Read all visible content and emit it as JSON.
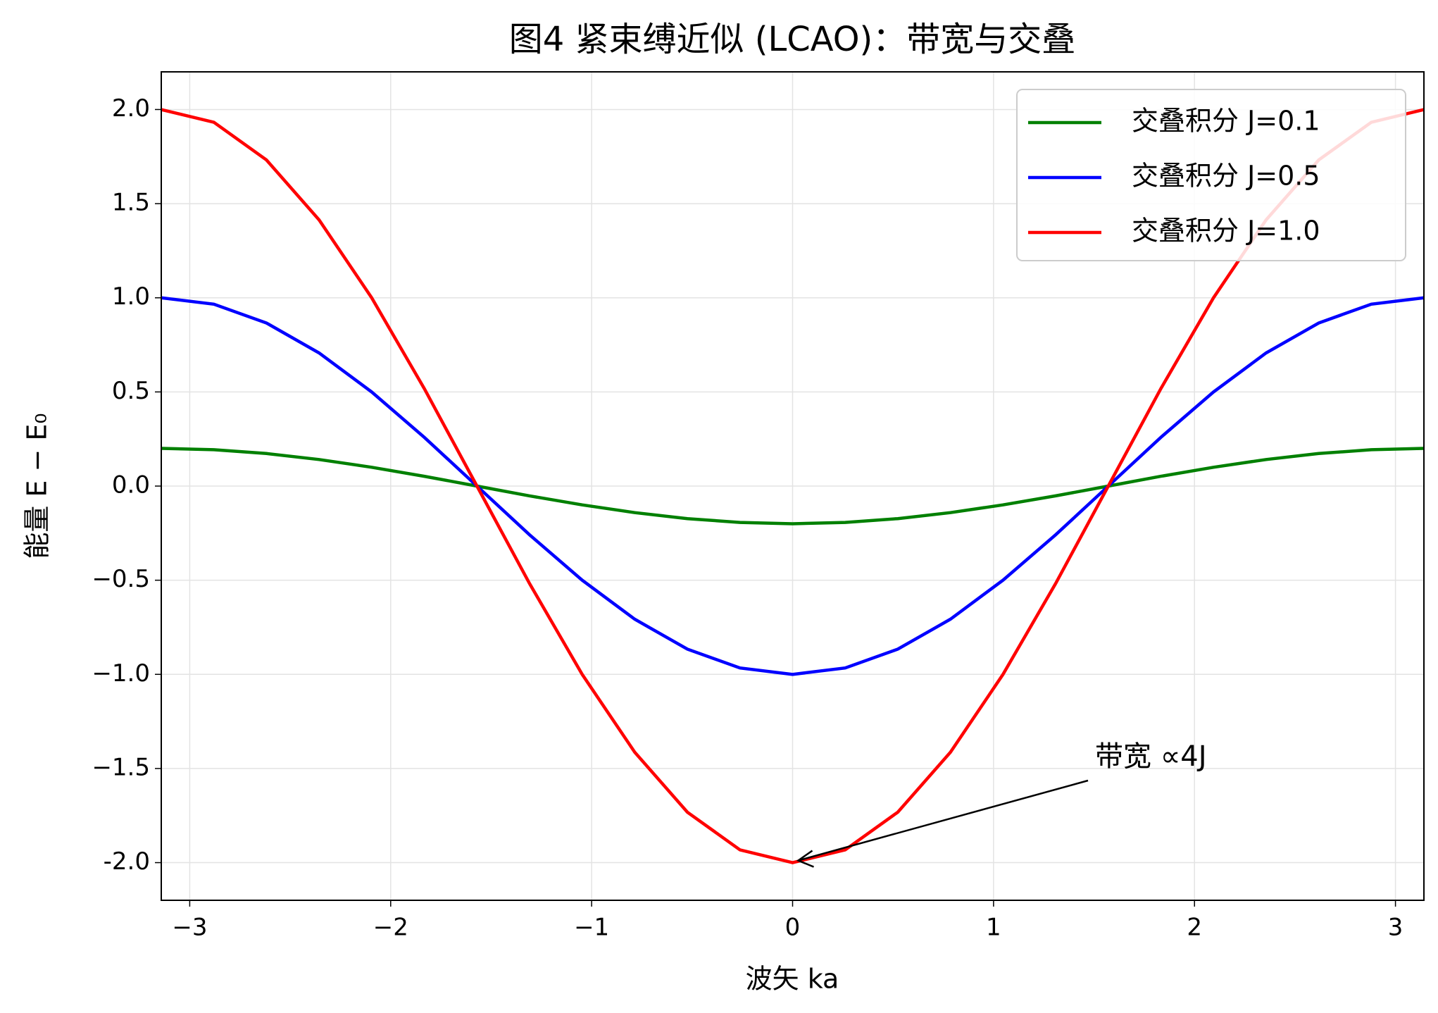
{
  "chart_data": {
    "type": "line",
    "title": "图4 紧束缚近似 (LCAO)：带宽与交叠",
    "x_label": "波矢 ka",
    "y_label": "能量 E − E₀",
    "annotation": "带宽 ∝4J",
    "x": [
      -3.1416,
      -2.8798,
      -2.618,
      -2.3562,
      -2.0944,
      -1.8326,
      -1.5708,
      -1.309,
      -1.0472,
      -0.7854,
      -0.5236,
      -0.2618,
      0,
      0.2618,
      0.5236,
      0.7854,
      1.0472,
      1.309,
      1.5708,
      1.8326,
      2.0944,
      2.3562,
      2.618,
      2.8798,
      3.1416
    ],
    "series": [
      {
        "name": "交叠积分 J=0.1",
        "color": "#008000",
        "values": [
          0.2,
          0.193,
          0.173,
          0.141,
          0.1,
          0.052,
          0,
          -0.052,
          -0.1,
          -0.141,
          -0.173,
          -0.193,
          -0.2,
          -0.193,
          -0.173,
          -0.141,
          -0.1,
          -0.052,
          0,
          0.052,
          0.1,
          0.141,
          0.173,
          0.193,
          0.2
        ]
      },
      {
        "name": "交叠积分 J=0.5",
        "color": "#0000ff",
        "values": [
          1,
          0.966,
          0.866,
          0.707,
          0.5,
          0.259,
          0,
          -0.259,
          -0.5,
          -0.707,
          -0.866,
          -0.966,
          -1,
          -0.966,
          -0.866,
          -0.707,
          -0.5,
          -0.259,
          0,
          0.259,
          0.5,
          0.707,
          0.866,
          0.966,
          1
        ]
      },
      {
        "name": "交叠积分 J=1.0",
        "color": "#ff0000",
        "values": [
          2,
          1.932,
          1.732,
          1.414,
          1,
          0.518,
          0,
          -0.518,
          -1,
          -1.414,
          -1.732,
          -1.932,
          -2,
          -1.932,
          -1.732,
          -1.414,
          -1,
          -0.518,
          0,
          0.518,
          1,
          1.414,
          1.732,
          1.932,
          2
        ]
      }
    ],
    "xlim": [
      -3.1416,
      3.1416
    ],
    "ylim": [
      -2.2,
      2.2
    ],
    "xticks": [
      {
        "value": -3,
        "label": "−3"
      },
      {
        "value": -2,
        "label": "−2"
      },
      {
        "value": -1,
        "label": "−1"
      },
      0,
      1,
      2,
      3
    ],
    "yticks": [
      {
        "value": -2,
        "label": "-2.0"
      },
      {
        "value": -1.5,
        "label": "−1.5"
      },
      {
        "value": -1,
        "label": "−1.0"
      },
      {
        "value": -0.5,
        "label": "−0.5"
      },
      {
        "value": 0,
        "label": "0.0"
      },
      {
        "value": 0.5,
        "label": "0.5"
      },
      {
        "value": 1,
        "label": "1.0"
      },
      {
        "value": 1.5,
        "label": "1.5"
      },
      {
        "value": 2,
        "label": "2.0"
      }
    ],
    "grid": true,
    "legend": "upper right"
  }
}
